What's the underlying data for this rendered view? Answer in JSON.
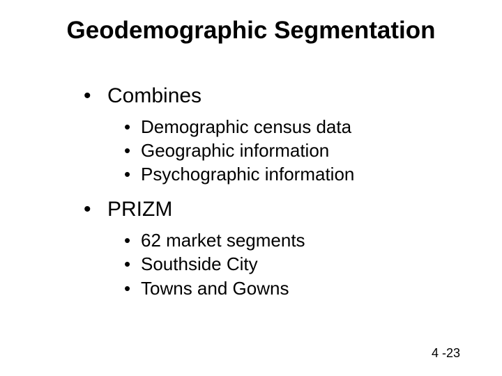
{
  "title": "Geodemographic Segmentation",
  "sections": [
    {
      "label": "Combines",
      "items": [
        "Demographic census data",
        "Geographic information",
        "Psychographic information"
      ]
    },
    {
      "label": "PRIZM",
      "items": [
        "62 market segments",
        "Southside City",
        "Towns and Gowns"
      ]
    }
  ],
  "footer": "4 -23",
  "style": {
    "background_color": "#ffffff",
    "text_color": "#000000",
    "title_fontsize": 35,
    "title_fontweight": "bold",
    "lvl1_fontsize": 30,
    "lvl2_fontsize": 26,
    "footer_fontsize": 18,
    "bullet_char_lvl1": "•",
    "bullet_char_lvl2": "•",
    "font_family": "Arial"
  }
}
